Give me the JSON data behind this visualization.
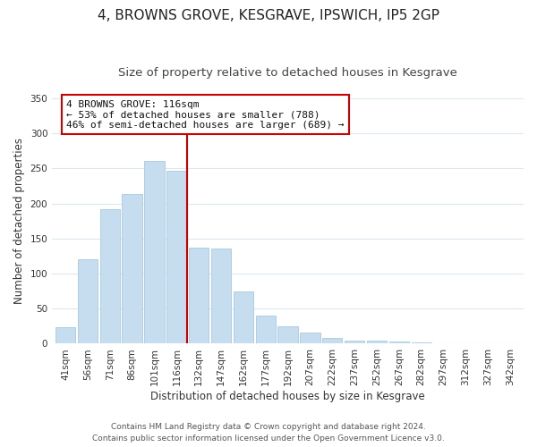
{
  "title": "4, BROWNS GROVE, KESGRAVE, IPSWICH, IP5 2GP",
  "subtitle": "Size of property relative to detached houses in Kesgrave",
  "xlabel": "Distribution of detached houses by size in Kesgrave",
  "ylabel": "Number of detached properties",
  "bar_labels": [
    "41sqm",
    "56sqm",
    "71sqm",
    "86sqm",
    "101sqm",
    "116sqm",
    "132sqm",
    "147sqm",
    "162sqm",
    "177sqm",
    "192sqm",
    "207sqm",
    "222sqm",
    "237sqm",
    "252sqm",
    "267sqm",
    "282sqm",
    "297sqm",
    "312sqm",
    "327sqm",
    "342sqm"
  ],
  "bar_values": [
    24,
    120,
    192,
    213,
    261,
    247,
    137,
    136,
    75,
    40,
    25,
    16,
    8,
    5,
    5,
    3,
    2,
    1,
    0,
    0,
    1
  ],
  "bar_color": "#c5ddef",
  "bar_edge_color": "#a8c8e0",
  "highlight_index": 5,
  "highlight_line_color": "#cc0000",
  "annotation_line1": "4 BROWNS GROVE: 116sqm",
  "annotation_line2": "← 53% of detached houses are smaller (788)",
  "annotation_line3": "46% of semi-detached houses are larger (689) →",
  "annotation_box_color": "#ffffff",
  "annotation_box_edge": "#cc0000",
  "ylim": [
    0,
    350
  ],
  "yticks": [
    0,
    50,
    100,
    150,
    200,
    250,
    300,
    350
  ],
  "footer1": "Contains HM Land Registry data © Crown copyright and database right 2024.",
  "footer2": "Contains public sector information licensed under the Open Government Licence v3.0.",
  "bg_color": "#ffffff",
  "grid_color": "#dce8f0",
  "title_fontsize": 11,
  "subtitle_fontsize": 9.5,
  "axis_label_fontsize": 8.5,
  "tick_fontsize": 7.5,
  "footer_fontsize": 6.5
}
